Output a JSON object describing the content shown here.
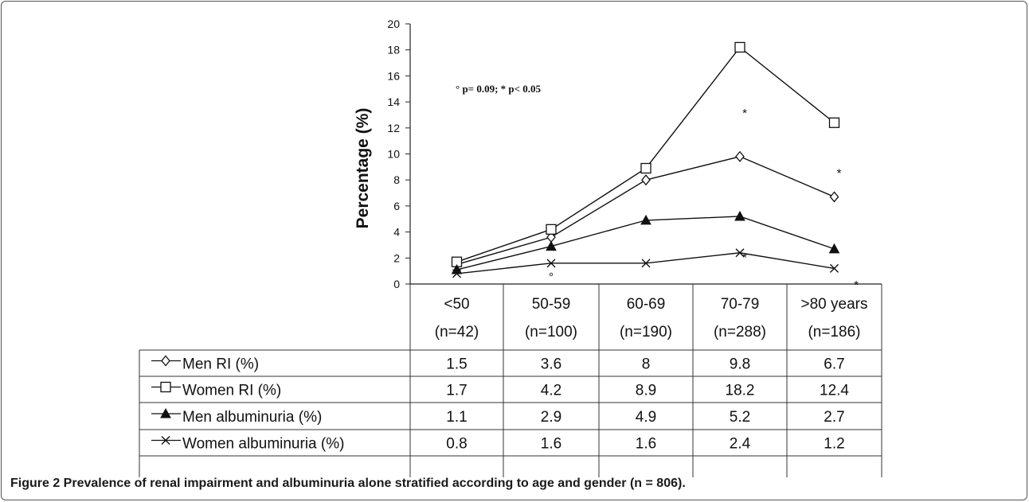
{
  "caption": "Figure 2 Prevalence of renal impairment and albuminuria alone stratified according to age and gender (n = 806).",
  "chart_data": {
    "type": "line",
    "ylabel": "Percentage (%)",
    "ylim": [
      0,
      20
    ],
    "yticks": [
      "0",
      "2",
      "4",
      "6",
      "8",
      "10",
      "12",
      "14",
      "16",
      "18",
      "20"
    ],
    "categories": [
      {
        "label": "<50",
        "n": "(n=42)"
      },
      {
        "label": "50-59",
        "n": "(n=100)"
      },
      {
        "label": "60-69",
        "n": "(n=190)"
      },
      {
        "label": "70-79",
        "n": "(n=288)"
      },
      {
        "label": ">80 years",
        "n": "(n=186)"
      }
    ],
    "series": [
      {
        "name": "Men RI (%)",
        "marker": "diamond-open",
        "values": [
          1.5,
          3.6,
          8,
          9.8,
          6.7
        ],
        "display": [
          "1.5",
          "3.6",
          "8",
          "9.8",
          "6.7"
        ]
      },
      {
        "name": "Women RI (%)",
        "marker": "square-open",
        "values": [
          1.7,
          4.2,
          8.9,
          18.2,
          12.4
        ],
        "display": [
          "1.7",
          "4.2",
          "8.9",
          "18.2",
          "12.4"
        ]
      },
      {
        "name": "Men albuminuria (%)",
        "marker": "triangle-filled",
        "values": [
          1.1,
          2.9,
          4.9,
          5.2,
          2.7
        ],
        "display": [
          "1.1",
          "2.9",
          "4.9",
          "5.2",
          "2.7"
        ]
      },
      {
        "name": "Women albuminuria (%)",
        "marker": "x",
        "values": [
          0.8,
          1.6,
          1.6,
          2.4,
          1.2
        ],
        "display": [
          "0.8",
          "1.6",
          "1.6",
          "2.4",
          "1.2"
        ]
      }
    ],
    "annotation": "° p= 0.09; * p< 0.05",
    "significance_marks": [
      {
        "text": "*",
        "category": 3,
        "y": 13.2
      },
      {
        "text": "*",
        "category": 4,
        "y": 8.6
      },
      {
        "text": "*",
        "category": 3,
        "y": 2.1
      },
      {
        "text": "°",
        "category": 1,
        "y": 0.6
      },
      {
        "text": "*",
        "category": 4,
        "y": 0.0
      }
    ],
    "grid": false,
    "legend": "table-left"
  }
}
